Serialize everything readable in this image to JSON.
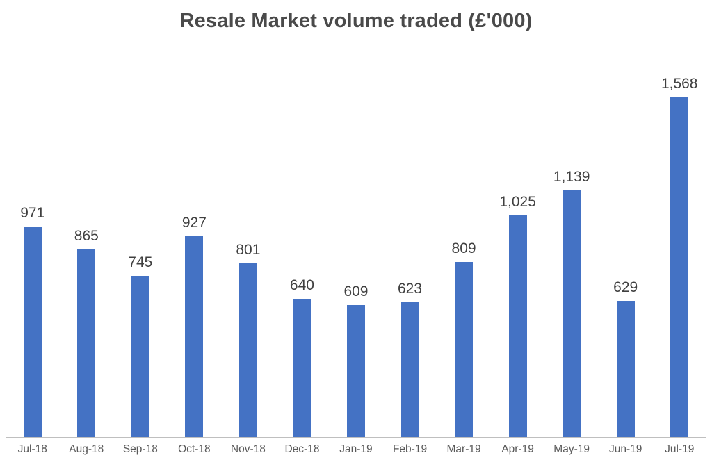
{
  "chart_data": {
    "type": "bar",
    "title": "Resale Market volume traded (£'000)",
    "categories": [
      "Jul-18",
      "Aug-18",
      "Sep-18",
      "Oct-18",
      "Nov-18",
      "Dec-18",
      "Jan-19",
      "Feb-19",
      "Mar-19",
      "Apr-19",
      "May-19",
      "Jun-19",
      "Jul-19"
    ],
    "values": [
      971,
      865,
      745,
      927,
      801,
      640,
      609,
      623,
      809,
      1025,
      1139,
      629,
      1568
    ],
    "value_labels": [
      "971",
      "865",
      "745",
      "927",
      "801",
      "640",
      "609",
      "623",
      "809",
      "1,025",
      "1,139",
      "629",
      "1,568"
    ],
    "xlabel": "",
    "ylabel": "",
    "ylim": [
      0,
      1800
    ],
    "bar_color": "#4472C4",
    "grid": "top line only",
    "legend": "none",
    "data_labels": "above bars"
  }
}
